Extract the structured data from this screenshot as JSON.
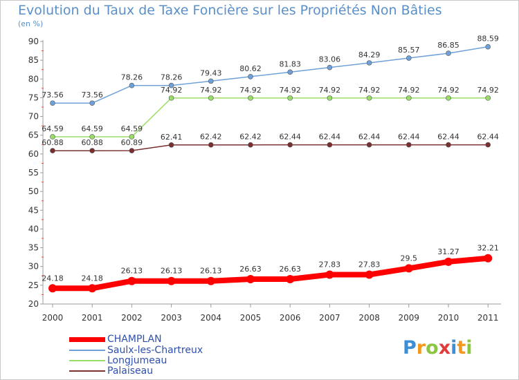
{
  "title": "Evolution du Taux de Taxe Foncière sur les Propriétés Non Bâties",
  "unit_label": "(en %)",
  "logo": {
    "text": "Proxiti"
  },
  "chart_data": {
    "type": "line",
    "title": "Evolution du Taux de Taxe Foncière sur les Propriétés Non Bâties",
    "ylabel": "(en %)",
    "xlabel": "",
    "ylim": [
      20,
      90
    ],
    "yticks": [
      20,
      25,
      30,
      35,
      40,
      45,
      50,
      55,
      60,
      65,
      70,
      75,
      80,
      85,
      90
    ],
    "x": [
      "2000",
      "2001",
      "2002",
      "2003",
      "2004",
      "2005",
      "2006",
      "2007",
      "2008",
      "2009",
      "2010",
      "2011"
    ],
    "grid": false,
    "legend_position": "bottom-left",
    "series": [
      {
        "name": "CHAMPLAN",
        "color": "#ff0000",
        "values": [
          24.18,
          24.18,
          26.13,
          26.13,
          26.13,
          26.63,
          26.63,
          27.83,
          27.83,
          29.5,
          31.27,
          32.21
        ],
        "labels": [
          "24.18",
          "24.18",
          "26.13",
          "26.13",
          "26.13",
          "26.63",
          "26.63",
          "27.83",
          "27.83",
          "29.5",
          "31.27",
          "32.21"
        ]
      },
      {
        "name": "Saulx-les-Chartreux",
        "color": "#6fa0d8",
        "values": [
          73.56,
          73.56,
          78.26,
          78.26,
          79.43,
          80.62,
          81.83,
          83.06,
          84.29,
          85.57,
          86.85,
          88.59
        ],
        "labels": [
          "73.56",
          "73.56",
          "78.26",
          "78.26",
          "79.43",
          "80.62",
          "81.83",
          "83.06",
          "84.29",
          "85.57",
          "86.85",
          "88.59"
        ]
      },
      {
        "name": "Longjumeau",
        "color": "#99dd66",
        "values": [
          64.59,
          64.59,
          64.59,
          74.92,
          74.92,
          74.92,
          74.92,
          74.92,
          74.92,
          74.92,
          74.92,
          74.92
        ],
        "labels": [
          "64.59",
          "64.59",
          "64.59",
          "74.92",
          "74.92",
          "74.92",
          "74.92",
          "74.92",
          "74.92",
          "74.92",
          "74.92",
          "74.92"
        ]
      },
      {
        "name": "Palaiseau",
        "color": "#7a2e2e",
        "values": [
          60.88,
          60.88,
          60.89,
          62.41,
          62.42,
          62.42,
          62.44,
          62.44,
          62.44,
          62.44,
          62.44,
          62.44
        ],
        "labels": [
          "60.88",
          "60.88",
          "60.89",
          "62.41",
          "62.42",
          "62.42",
          "62.44",
          "62.44",
          "62.44",
          "62.44",
          "62.44",
          "62.44"
        ]
      }
    ]
  }
}
